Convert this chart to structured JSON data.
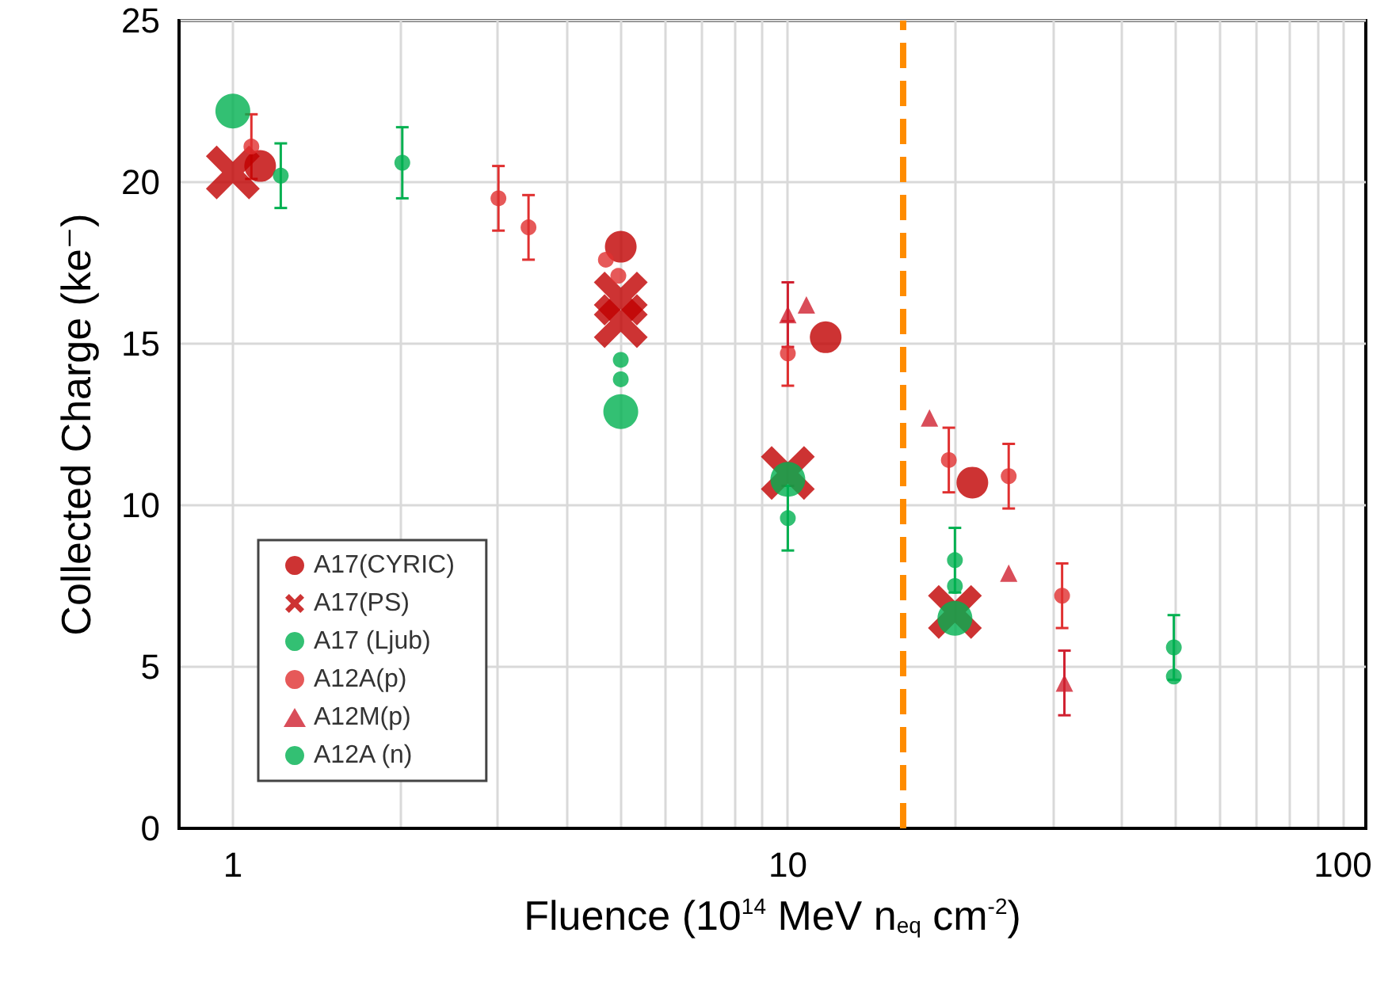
{
  "chart_data": {
    "type": "scatter",
    "xlabel": "Fluence (10$^{14}$ MeV n$_{eq}$ cm$^{-2}$)",
    "ylabel": "Collected Charge (ke⁻)",
    "log": "x",
    "xlim": [
      0.8,
      110
    ],
    "ylim": [
      0,
      25
    ],
    "xticks": [
      1,
      {
        "value": 2,
        "label": null
      },
      {
        "value": 3,
        "label": null
      },
      {
        "value": 4,
        "label": null
      },
      {
        "value": 5,
        "label": null
      },
      {
        "value": 6,
        "label": null
      },
      {
        "value": 7,
        "label": null
      },
      {
        "value": 8,
        "label": null
      },
      {
        "value": 9,
        "label": null
      },
      10,
      {
        "value": 20,
        "label": null
      },
      {
        "value": 30,
        "label": null
      },
      {
        "value": 40,
        "label": null
      },
      {
        "value": 50,
        "label": null
      },
      {
        "value": 60,
        "label": null
      },
      {
        "value": 70,
        "label": null
      },
      {
        "value": 80,
        "label": null
      },
      {
        "value": 90,
        "label": null
      },
      100
    ],
    "yticks": [
      0,
      5,
      10,
      15,
      20,
      25
    ],
    "grid": true,
    "legend": "bottom left",
    "ref_lines": [
      {
        "axis": "x",
        "value": 16.1,
        "color": "#ff8c00",
        "line_style": "dashed"
      }
    ],
    "series": [
      {
        "name": "A17(CYRIC)",
        "color": "#c00000",
        "marker": "circle",
        "x": [
          1.12,
          5,
          11.7,
          21.5
        ],
        "values": [
          20.5,
          18.0,
          15.2,
          10.7
        ]
      },
      {
        "name": "A17(PS)",
        "color": "#c00000",
        "marker": "cross",
        "x": [
          1.0,
          5,
          5,
          10,
          20
        ],
        "values": [
          20.3,
          15.7,
          16.4,
          11.0,
          6.7
        ]
      },
      {
        "name": "A17 (Ljub)",
        "color": "#00b050",
        "marker": "circle",
        "x": [
          1.0,
          5,
          10,
          20
        ],
        "values": [
          22.2,
          12.9,
          10.8,
          6.5
        ]
      },
      {
        "name": "A12A(p)",
        "color": "#e03030",
        "marker": "circle",
        "x": [
          1.08,
          3.01,
          3.41,
          4.7,
          4.95,
          10,
          19.5,
          25,
          31.2
        ],
        "values": [
          21.1,
          19.5,
          18.6,
          17.6,
          17.1,
          14.7,
          11.4,
          10.9,
          7.2
        ],
        "errors": [
          1.0,
          1.0,
          1.0,
          null,
          null,
          1.0,
          1.0,
          1.0,
          1.0
        ]
      },
      {
        "name": "A12M(p)",
        "color": "#d02030",
        "marker": "triangle",
        "x": [
          10,
          10.8,
          18.0,
          25,
          31.5
        ],
        "values": [
          15.9,
          16.2,
          12.7,
          7.9,
          4.5
        ],
        "errors": [
          1.0,
          null,
          null,
          null,
          1.0
        ]
      },
      {
        "name": "A12A (n)",
        "color": "#00b050",
        "marker": "circle",
        "x": [
          1.22,
          2.02,
          5,
          5,
          10,
          20,
          20,
          49.6,
          49.6
        ],
        "values": [
          20.2,
          20.6,
          14.5,
          13.9,
          9.6,
          8.3,
          7.5,
          5.6,
          4.7
        ],
        "errors": [
          1.0,
          1.1,
          null,
          null,
          1.0,
          1.0,
          null,
          1.0,
          null
        ]
      }
    ]
  }
}
